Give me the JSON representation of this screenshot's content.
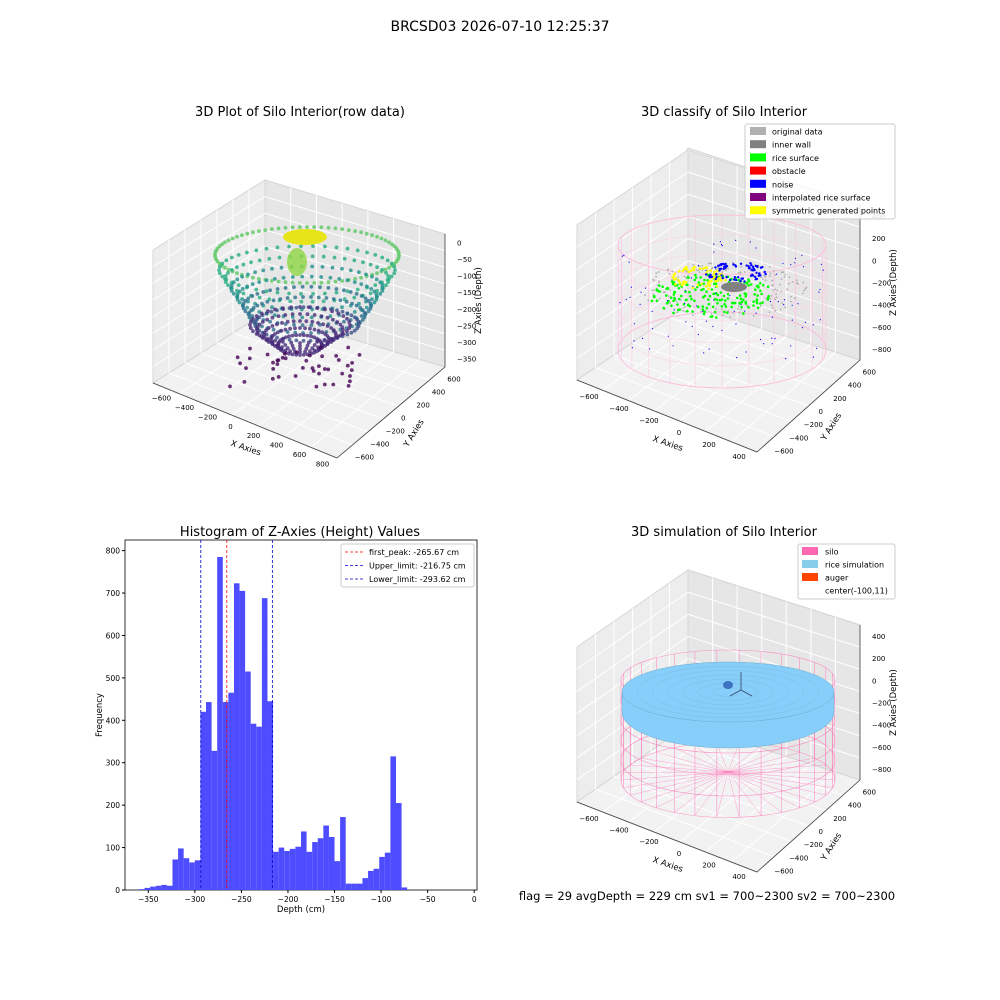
{
  "suptitle": "BRCSD03 2026-07-10 12:25:37",
  "footer": "flag = 29  avgDepth = 229 cm  sv1 = 700~2300  sv2 = 700~2300",
  "colors": {
    "hist_bar": "#4d4dff",
    "first_peak": "#ff0000",
    "limits": "#0000cc",
    "silo": "#ff69b4",
    "rice": "#87cefa",
    "auger": "#ff4500",
    "classify": {
      "original": "#b0b0b0",
      "inner": "#808080",
      "rice": "#00ff00",
      "obstacle": "#ff0000",
      "noise": "#0000ff",
      "interp": "#800080",
      "sym": "#ffff00"
    }
  },
  "chart_data": [
    {
      "type": "scatter",
      "projection": "3d",
      "title": "3D Plot of Silo Interior(row data)",
      "xlabel": "X Axies",
      "ylabel": "Y Axies",
      "zlabel": "Z Axies (Depth)",
      "x_ticks": [
        "−600",
        "−400",
        "−200",
        "0",
        "200",
        "400",
        "600",
        "800"
      ],
      "y_ticks": [
        "−600",
        "−400",
        "−200",
        "0",
        "200",
        "400",
        "600"
      ],
      "z_ticks": [
        "0",
        "−50",
        "−100",
        "−150",
        "−200",
        "−250",
        "−300",
        "−350"
      ],
      "colormap": "viridis"
    },
    {
      "type": "scatter",
      "projection": "3d",
      "title": "3D classify of Silo Interior",
      "xlabel": "X Axies",
      "ylabel": "Y Axies",
      "zlabel": "Z Axies (Depth)",
      "x_ticks": [
        "−600",
        "−400",
        "−200",
        "0",
        "200",
        "400"
      ],
      "y_ticks": [
        "−600",
        "−400",
        "−200",
        "0",
        "200",
        "400",
        "600"
      ],
      "z_ticks": [
        "400",
        "200",
        "0",
        "−200",
        "−400",
        "−600",
        "−800"
      ],
      "legend_position": "top-right",
      "legend": [
        {
          "label": "original data",
          "color": "#b0b0b0"
        },
        {
          "label": "inner wall",
          "color": "#808080"
        },
        {
          "label": "rice surface",
          "color": "#00ff00"
        },
        {
          "label": "obstacle",
          "color": "#ff0000"
        },
        {
          "label": "noise",
          "color": "#0000ff"
        },
        {
          "label": "interpolated rice surface",
          "color": "#800080"
        },
        {
          "label": "symmetric generated points",
          "color": "#ffff00"
        }
      ]
    },
    {
      "type": "bar",
      "title": "Histogram of Z-Axies (Height) Values",
      "xlabel": "Depth (cm)",
      "ylabel": "Frequency",
      "xlim": [
        -375,
        3
      ],
      "ylim": [
        0,
        825
      ],
      "x_ticks": [
        -350,
        -300,
        -250,
        -200,
        -150,
        -100,
        -50,
        0
      ],
      "y_ticks": [
        0,
        100,
        200,
        300,
        400,
        500,
        600,
        700,
        800
      ],
      "bin_start": -360,
      "bin_width": 6,
      "values": [
        2,
        5,
        8,
        10,
        12,
        10,
        72,
        98,
        75,
        65,
        70,
        420,
        443,
        328,
        785,
        443,
        465,
        723,
        705,
        515,
        392,
        385,
        688,
        445,
        90,
        100,
        92,
        97,
        102,
        138,
        90,
        113,
        122,
        152,
        125,
        68,
        172,
        15,
        15,
        15,
        28,
        45,
        50,
        78,
        88,
        315,
        205,
        6
      ],
      "vlines": [
        {
          "label": "first_peak: -265.67 cm",
          "x": -265.67,
          "color": "#ff0000"
        },
        {
          "label": "Upper_limit: -216.75 cm",
          "x": -216.75,
          "color": "#0000cc"
        },
        {
          "label": "Lower_limit: -293.62 cm",
          "x": -293.62,
          "color": "#0000cc"
        }
      ],
      "legend_position": "top-right"
    },
    {
      "type": "surface",
      "projection": "3d",
      "title": "3D simulation of Silo Interior",
      "xlabel": "X Axies",
      "ylabel": "Y Axies",
      "zlabel": "Z Axies (Depth)",
      "x_ticks": [
        "−600",
        "−400",
        "−200",
        "0",
        "200",
        "400"
      ],
      "y_ticks": [
        "−600",
        "−400",
        "−200",
        "0",
        "200",
        "400",
        "600"
      ],
      "z_ticks": [
        "400",
        "200",
        "0",
        "−200",
        "−400",
        "−600",
        "−800"
      ],
      "legend_position": "top-right",
      "legend": [
        {
          "label": "silo",
          "color": "#ff69b4"
        },
        {
          "label": "rice simulation",
          "color": "#87ceeb"
        },
        {
          "label": "auger",
          "color": "#ff4500"
        },
        {
          "label": "center(-100,11)",
          "color": ""
        }
      ]
    }
  ]
}
